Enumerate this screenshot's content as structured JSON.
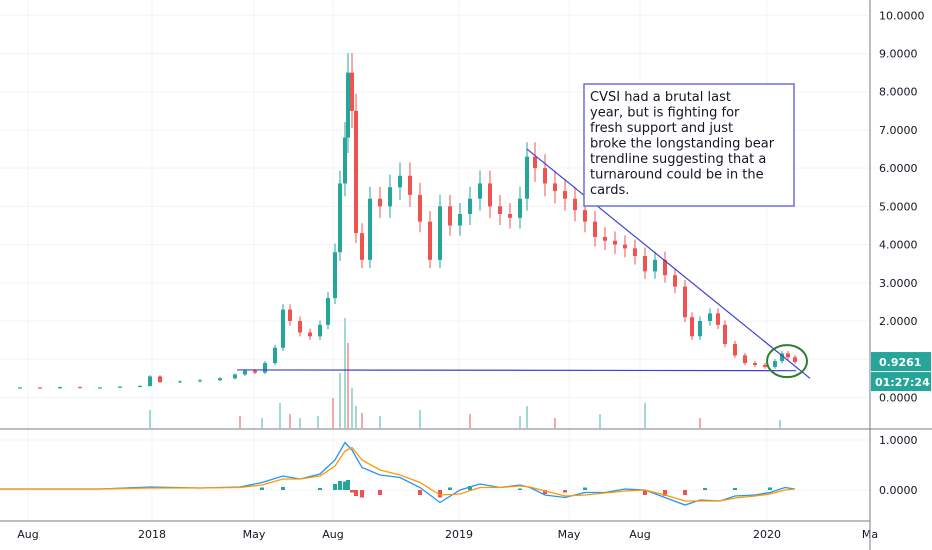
{
  "chart_data": {
    "type": "candlestick-line",
    "price_axis": {
      "ticks": [
        "0.0000",
        "1.0000",
        "2.0000",
        "3.0000",
        "4.0000",
        "5.0000",
        "6.0000",
        "7.0000",
        "8.0000",
        "9.0000",
        "10.0000"
      ],
      "range": [
        -0.8,
        10.4
      ]
    },
    "macd_axis": {
      "ticks": [
        "0.0000",
        "1.0000"
      ],
      "range": [
        -0.6,
        1.2
      ]
    },
    "x_ticks": [
      "Aug",
      "2018",
      "May",
      "Aug",
      "2019",
      "May",
      "Aug",
      "2020",
      "Ma"
    ],
    "last_price_label": "0.9261",
    "countdown_label": "01:27:24",
    "annotation": "CVSI had a brutal last year, but is fighting for fresh support and just broke the longstanding bear trendline suggesting that a turnaround could be in the cards.",
    "price_series": [
      [
        0,
        0.25
      ],
      [
        20,
        0.26
      ],
      [
        40,
        0.24
      ],
      [
        60,
        0.27
      ],
      [
        80,
        0.25
      ],
      [
        100,
        0.26
      ],
      [
        120,
        0.28
      ],
      [
        140,
        0.3
      ],
      [
        150,
        0.55
      ],
      [
        160,
        0.4
      ],
      [
        180,
        0.42
      ],
      [
        200,
        0.45
      ],
      [
        220,
        0.5
      ],
      [
        235,
        0.6
      ],
      [
        245,
        0.7
      ],
      [
        255,
        0.65
      ],
      [
        265,
        0.9
      ],
      [
        275,
        1.3
      ],
      [
        283,
        2.3
      ],
      [
        290,
        2.0
      ],
      [
        300,
        1.7
      ],
      [
        310,
        1.6
      ],
      [
        320,
        1.9
      ],
      [
        328,
        2.6
      ],
      [
        335,
        3.8
      ],
      [
        340,
        5.6
      ],
      [
        345,
        6.8
      ],
      [
        348,
        8.5
      ],
      [
        352,
        7.5
      ],
      [
        356,
        4.3
      ],
      [
        362,
        3.6
      ],
      [
        370,
        5.2
      ],
      [
        380,
        5.0
      ],
      [
        390,
        5.5
      ],
      [
        400,
        5.8
      ],
      [
        410,
        5.3
      ],
      [
        420,
        4.6
      ],
      [
        430,
        3.6
      ],
      [
        440,
        5.0
      ],
      [
        450,
        4.5
      ],
      [
        460,
        4.8
      ],
      [
        470,
        5.2
      ],
      [
        480,
        5.6
      ],
      [
        490,
        5.0
      ],
      [
        500,
        4.8
      ],
      [
        510,
        4.7
      ],
      [
        520,
        5.2
      ],
      [
        527,
        6.3
      ],
      [
        535,
        6.0
      ],
      [
        545,
        5.6
      ],
      [
        555,
        5.4
      ],
      [
        565,
        5.2
      ],
      [
        575,
        4.9
      ],
      [
        585,
        4.6
      ],
      [
        595,
        4.2
      ],
      [
        605,
        4.1
      ],
      [
        615,
        4.0
      ],
      [
        625,
        3.9
      ],
      [
        635,
        3.7
      ],
      [
        645,
        3.3
      ],
      [
        655,
        3.6
      ],
      [
        665,
        3.2
      ],
      [
        675,
        2.9
      ],
      [
        685,
        2.1
      ],
      [
        692,
        1.6
      ],
      [
        700,
        2.0
      ],
      [
        710,
        2.2
      ],
      [
        718,
        1.9
      ],
      [
        725,
        1.4
      ],
      [
        735,
        1.1
      ],
      [
        745,
        0.9
      ],
      [
        755,
        0.85
      ],
      [
        765,
        0.8
      ],
      [
        775,
        0.95
      ],
      [
        782,
        1.15
      ],
      [
        788,
        1.05
      ],
      [
        795,
        0.93
      ]
    ],
    "volume_bars": [
      [
        150,
        18
      ],
      [
        240,
        12
      ],
      [
        262,
        10
      ],
      [
        280,
        25
      ],
      [
        290,
        14
      ],
      [
        300,
        10
      ],
      [
        318,
        12
      ],
      [
        333,
        30
      ],
      [
        340,
        55
      ],
      [
        345,
        110
      ],
      [
        348,
        85
      ],
      [
        352,
        40
      ],
      [
        356,
        22
      ],
      [
        362,
        15
      ],
      [
        380,
        12
      ],
      [
        420,
        18
      ],
      [
        470,
        14
      ],
      [
        520,
        12
      ],
      [
        527,
        22
      ],
      [
        555,
        10
      ],
      [
        600,
        14
      ],
      [
        645,
        25
      ],
      [
        700,
        10
      ],
      [
        780,
        8
      ]
    ],
    "macd_series": [
      [
        0,
        0.02
      ],
      [
        100,
        0.02
      ],
      [
        150,
        0.06
      ],
      [
        200,
        0.04
      ],
      [
        240,
        0.06
      ],
      [
        262,
        0.15
      ],
      [
        283,
        0.28
      ],
      [
        300,
        0.22
      ],
      [
        320,
        0.32
      ],
      [
        335,
        0.6
      ],
      [
        345,
        0.95
      ],
      [
        352,
        0.8
      ],
      [
        362,
        0.45
      ],
      [
        380,
        0.3
      ],
      [
        400,
        0.25
      ],
      [
        420,
        0.05
      ],
      [
        440,
        -0.25
      ],
      [
        460,
        0.0
      ],
      [
        480,
        0.12
      ],
      [
        500,
        0.05
      ],
      [
        520,
        0.1
      ],
      [
        530,
        0.05
      ],
      [
        545,
        -0.1
      ],
      [
        565,
        -0.15
      ],
      [
        585,
        -0.05
      ],
      [
        605,
        -0.05
      ],
      [
        625,
        0.02
      ],
      [
        645,
        0.0
      ],
      [
        665,
        -0.15
      ],
      [
        685,
        -0.3
      ],
      [
        700,
        -0.2
      ],
      [
        720,
        -0.22
      ],
      [
        735,
        -0.12
      ],
      [
        755,
        -0.1
      ],
      [
        770,
        -0.05
      ],
      [
        785,
        0.05
      ],
      [
        795,
        0.02
      ]
    ],
    "signal_series": [
      [
        0,
        0.02
      ],
      [
        100,
        0.02
      ],
      [
        150,
        0.04
      ],
      [
        200,
        0.04
      ],
      [
        240,
        0.05
      ],
      [
        262,
        0.1
      ],
      [
        283,
        0.22
      ],
      [
        300,
        0.22
      ],
      [
        320,
        0.28
      ],
      [
        335,
        0.48
      ],
      [
        345,
        0.78
      ],
      [
        352,
        0.85
      ],
      [
        362,
        0.6
      ],
      [
        380,
        0.4
      ],
      [
        400,
        0.3
      ],
      [
        420,
        0.15
      ],
      [
        440,
        -0.1
      ],
      [
        460,
        -0.08
      ],
      [
        480,
        0.05
      ],
      [
        500,
        0.05
      ],
      [
        520,
        0.08
      ],
      [
        530,
        0.06
      ],
      [
        545,
        -0.02
      ],
      [
        565,
        -0.12
      ],
      [
        585,
        -0.1
      ],
      [
        605,
        -0.06
      ],
      [
        625,
        -0.02
      ],
      [
        645,
        0.0
      ],
      [
        665,
        -0.1
      ],
      [
        685,
        -0.22
      ],
      [
        700,
        -0.22
      ],
      [
        720,
        -0.22
      ],
      [
        735,
        -0.16
      ],
      [
        755,
        -0.12
      ],
      [
        770,
        -0.08
      ],
      [
        785,
        0.0
      ],
      [
        795,
        0.02
      ]
    ],
    "histogram": [
      [
        262,
        0.05
      ],
      [
        283,
        0.06
      ],
      [
        300,
        0.0
      ],
      [
        320,
        0.04
      ],
      [
        335,
        0.12
      ],
      [
        340,
        0.18
      ],
      [
        345,
        0.17
      ],
      [
        348,
        0.2
      ],
      [
        352,
        -0.05
      ],
      [
        356,
        -0.12
      ],
      [
        362,
        -0.15
      ],
      [
        380,
        -0.1
      ],
      [
        420,
        -0.1
      ],
      [
        440,
        -0.15
      ],
      [
        450,
        0.05
      ],
      [
        470,
        0.08
      ],
      [
        520,
        0.03
      ],
      [
        545,
        -0.08
      ],
      [
        565,
        -0.05
      ],
      [
        585,
        0.05
      ],
      [
        645,
        -0.1
      ],
      [
        665,
        -0.12
      ],
      [
        685,
        -0.1
      ],
      [
        705,
        0.04
      ],
      [
        735,
        0.04
      ],
      [
        770,
        0.05
      ]
    ],
    "colors": {
      "up": "#26a69a",
      "down": "#ef5350",
      "trend": "#3f3fd6",
      "macd": "#2196f3",
      "signal": "#ff9800",
      "badge": "#26a69a",
      "circle": "#2e7d32"
    }
  }
}
